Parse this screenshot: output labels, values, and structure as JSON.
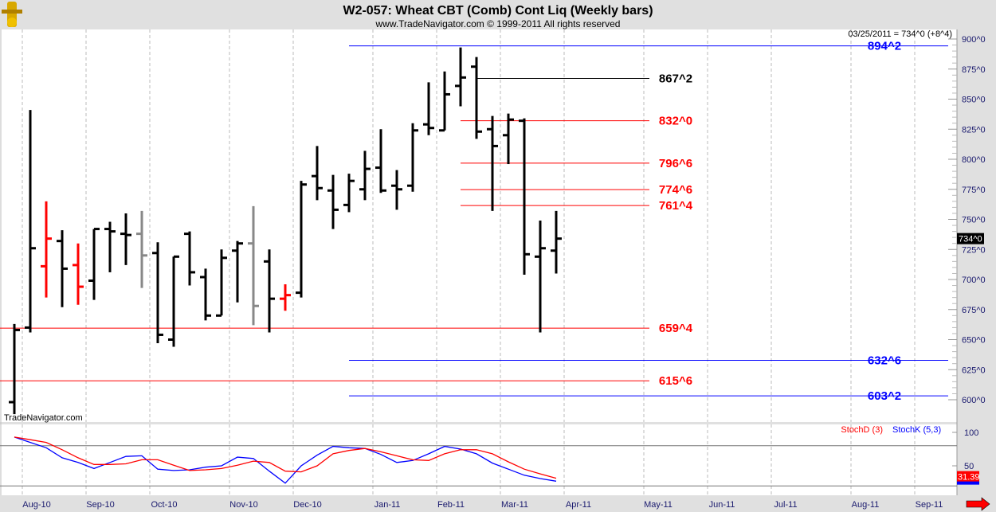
{
  "header": {
    "title": "W2-057:  Wheat CBT (Comb) Cont Liq  (Weekly bars)",
    "subtitle": "www.TradeNavigator.com © 1999-2011 All rights reserved",
    "last_note": "03/25/2011 = 734^0 (+8^4)",
    "watermark": "TradeNavigator.com",
    "logo_icon": "anchor-logo-icon"
  },
  "colors": {
    "up": "#000000",
    "down": "#ff0000",
    "neutral": "#888888",
    "blue": "#0000ff",
    "red": "#ff0000",
    "axis_text": "#1a1a6e"
  },
  "chart_data": [
    {
      "type": "ohlc",
      "title": "W2-057:  Wheat CBT (Comb) Cont Liq  (Weekly bars)",
      "ylim": [
        590,
        905
      ],
      "y_ticks": [
        "900^0",
        "875^0",
        "850^0",
        "825^0",
        "800^0",
        "775^0",
        "750^0",
        "725^0",
        "700^0",
        "675^0",
        "650^0",
        "625^0",
        "600^0"
      ],
      "y_tick_values": [
        900,
        875,
        850,
        825,
        800,
        775,
        750,
        725,
        700,
        675,
        650,
        625,
        600
      ],
      "x_ticks": [
        "Aug-10",
        "Sep-10",
        "Oct-10",
        "Nov-10",
        "Dec-10",
        "Jan-11",
        "Feb-11",
        "Mar-11",
        "Apr-11",
        "May-11",
        "Jun-11",
        "Jul-11",
        "Aug-11",
        "Sep-11"
      ],
      "grid": "vertical dashed at month starts",
      "last_price_label": "734^0",
      "bars": [
        {
          "o": 598,
          "h": 663,
          "l": 588,
          "c": 658,
          "color": "black"
        },
        {
          "o": 660,
          "h": 841,
          "l": 656,
          "c": 726,
          "color": "black"
        },
        {
          "o": 711,
          "h": 765,
          "l": 685,
          "c": 734,
          "color": "red"
        },
        {
          "o": 732,
          "h": 741,
          "l": 677,
          "c": 709,
          "color": "black"
        },
        {
          "o": 712,
          "h": 730,
          "l": 679,
          "c": 694,
          "color": "red"
        },
        {
          "o": 699,
          "h": 742,
          "l": 683,
          "c": 742,
          "color": "black"
        },
        {
          "o": 742,
          "h": 748,
          "l": 706,
          "c": 740,
          "color": "black"
        },
        {
          "o": 738,
          "h": 755,
          "l": 712,
          "c": 737,
          "color": "black"
        },
        {
          "o": 738,
          "h": 757,
          "l": 693,
          "c": 720,
          "color": "gray"
        },
        {
          "o": 722,
          "h": 731,
          "l": 647,
          "c": 654,
          "color": "black"
        },
        {
          "o": 650,
          "h": 719,
          "l": 644,
          "c": 719,
          "color": "black"
        },
        {
          "o": 738,
          "h": 740,
          "l": 695,
          "c": 706,
          "color": "black"
        },
        {
          "o": 702,
          "h": 709,
          "l": 666,
          "c": 670,
          "color": "black"
        },
        {
          "o": 670,
          "h": 725,
          "l": 670,
          "c": 718,
          "color": "black"
        },
        {
          "o": 724,
          "h": 732,
          "l": 681,
          "c": 730,
          "color": "black"
        },
        {
          "o": 730,
          "h": 761,
          "l": 662,
          "c": 678,
          "color": "gray"
        },
        {
          "o": 715,
          "h": 725,
          "l": 656,
          "c": 684,
          "color": "black"
        },
        {
          "o": 684,
          "h": 696,
          "l": 674,
          "c": 687,
          "color": "red"
        },
        {
          "o": 689,
          "h": 782,
          "l": 685,
          "c": 779,
          "color": "black"
        },
        {
          "o": 786,
          "h": 811,
          "l": 766,
          "c": 776,
          "color": "black"
        },
        {
          "o": 774,
          "h": 787,
          "l": 742,
          "c": 758,
          "color": "black"
        },
        {
          "o": 762,
          "h": 788,
          "l": 756,
          "c": 782,
          "color": "black"
        },
        {
          "o": 775,
          "h": 807,
          "l": 766,
          "c": 792,
          "color": "black"
        },
        {
          "o": 793,
          "h": 825,
          "l": 772,
          "c": 774,
          "color": "black"
        },
        {
          "o": 778,
          "h": 791,
          "l": 758,
          "c": 775,
          "color": "black"
        },
        {
          "o": 778,
          "h": 830,
          "l": 773,
          "c": 824,
          "color": "black"
        },
        {
          "o": 829,
          "h": 864,
          "l": 820,
          "c": 826,
          "color": "black"
        },
        {
          "o": 824,
          "h": 873,
          "l": 824,
          "c": 854,
          "color": "black"
        },
        {
          "o": 861,
          "h": 893,
          "l": 844,
          "c": 868,
          "color": "black"
        },
        {
          "o": 877,
          "h": 885,
          "l": 817,
          "c": 823,
          "color": "black"
        },
        {
          "o": 825,
          "h": 836,
          "l": 757,
          "c": 811,
          "color": "black"
        },
        {
          "o": 820,
          "h": 838,
          "l": 796,
          "c": 833,
          "color": "black"
        },
        {
          "o": 832,
          "h": 834,
          "l": 704,
          "c": 721,
          "color": "black"
        },
        {
          "o": 719,
          "h": 749,
          "l": 656,
          "c": 726,
          "color": "black"
        },
        {
          "o": 724,
          "h": 757,
          "l": 705,
          "c": 734,
          "color": "black"
        }
      ],
      "levels": [
        {
          "label": "894^2",
          "value": 894.25,
          "color": "blue",
          "start_bar": 21,
          "extent": "full"
        },
        {
          "label": "867^2",
          "value": 867.25,
          "color": "black",
          "start_bar": 29,
          "extent": "short"
        },
        {
          "label": "832^0",
          "value": 832,
          "color": "red",
          "start_bar": 28,
          "extent": "short"
        },
        {
          "label": "796^6",
          "value": 796.75,
          "color": "red",
          "start_bar": 28,
          "extent": "short"
        },
        {
          "label": "774^6",
          "value": 774.75,
          "color": "red",
          "start_bar": 28,
          "extent": "short"
        },
        {
          "label": "761^4",
          "value": 761.5,
          "color": "red",
          "start_bar": 28,
          "extent": "short"
        },
        {
          "label": "659^4",
          "value": 659.5,
          "color": "red",
          "start_bar": 0,
          "extent": "short"
        },
        {
          "label": "632^6",
          "value": 632.75,
          "color": "blue",
          "start_bar": 21,
          "extent": "full"
        },
        {
          "label": "615^6",
          "value": 615.75,
          "color": "red",
          "start_bar": 0,
          "extent": "short"
        },
        {
          "label": "603^2",
          "value": 603.25,
          "color": "blue",
          "start_bar": 21,
          "extent": "full"
        }
      ]
    },
    {
      "type": "line",
      "ylim": [
        0,
        105
      ],
      "y_ticks": [
        "100",
        "50"
      ],
      "y_tick_values": [
        100,
        50
      ],
      "ref_lines": [
        80,
        20
      ],
      "series": [
        {
          "name": "StochD (3)",
          "color": "#ff0000",
          "values": [
            93,
            89,
            85,
            74,
            62,
            52,
            52,
            53,
            59,
            59,
            51,
            43,
            44,
            46,
            51,
            57,
            55,
            42,
            41,
            50,
            68,
            73,
            76,
            71,
            65,
            59,
            58,
            68,
            74,
            74,
            68,
            56,
            45,
            38,
            31.39
          ]
        },
        {
          "name": "StochK (5,3)",
          "color": "#0000ff",
          "values": [
            93,
            85,
            77,
            62,
            55,
            46,
            55,
            64,
            65,
            45,
            43,
            44,
            48,
            50,
            63,
            61,
            42,
            24,
            50,
            66,
            79,
            77,
            76,
            67,
            55,
            58,
            68,
            79,
            75,
            68,
            54,
            45,
            36,
            31,
            27
          ]
        }
      ],
      "last_value_label": "31.39"
    }
  ]
}
